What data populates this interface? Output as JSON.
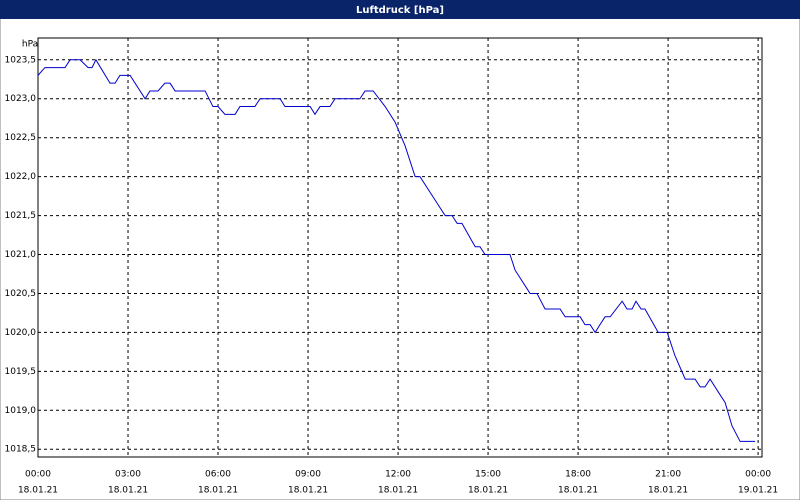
{
  "chart_data": {
    "type": "line",
    "title": "Luftdruck [hPa]",
    "y_unit": "hPa",
    "color": "#0000cc",
    "grid": true,
    "x": [
      0,
      0.23,
      0.9,
      1.07,
      1.4,
      1.67,
      1.8,
      1.93,
      2.4,
      2.57,
      2.73,
      3.07,
      3.57,
      3.73,
      4.0,
      4.23,
      4.4,
      4.57,
      5.57,
      5.83,
      6.0,
      6.23,
      6.57,
      6.73,
      7.23,
      7.4,
      8.07,
      8.23,
      9.07,
      9.23,
      9.4,
      9.73,
      9.9,
      10.73,
      10.9,
      11.17,
      11.57,
      11.9,
      12.23,
      12.57,
      12.73,
      13.4,
      13.57,
      13.8,
      13.97,
      14.13,
      14.57,
      14.73,
      14.9,
      15.73,
      15.9,
      16.4,
      16.63,
      16.9,
      17.4,
      17.57,
      18.07,
      18.23,
      18.4,
      18.57,
      18.73,
      18.9,
      19.07,
      19.47,
      19.63,
      19.8,
      19.93,
      20.1,
      20.23,
      20.67,
      20.97,
      21.23,
      21.57,
      21.9,
      22.07,
      22.23,
      22.4,
      22.73,
      22.9,
      23.13,
      23.4,
      23.9
    ],
    "values": [
      1023.3,
      1023.4,
      1023.4,
      1023.5,
      1023.5,
      1023.4,
      1023.4,
      1023.5,
      1023.2,
      1023.2,
      1023.3,
      1023.3,
      1023.0,
      1023.1,
      1023.1,
      1023.2,
      1023.2,
      1023.1,
      1023.1,
      1022.9,
      1022.9,
      1022.8,
      1022.8,
      1022.9,
      1022.9,
      1023.0,
      1023.0,
      1022.9,
      1022.9,
      1022.8,
      1022.9,
      1022.9,
      1023.0,
      1023.0,
      1023.1,
      1023.1,
      1022.9,
      1022.7,
      1022.4,
      1022.0,
      1022.0,
      1021.6,
      1021.5,
      1021.5,
      1021.4,
      1021.4,
      1021.1,
      1021.1,
      1021.0,
      1021.0,
      1020.8,
      1020.5,
      1020.5,
      1020.3,
      1020.3,
      1020.2,
      1020.2,
      1020.1,
      1020.1,
      1020.0,
      1020.1,
      1020.2,
      1020.2,
      1020.4,
      1020.3,
      1020.3,
      1020.4,
      1020.3,
      1020.3,
      1020.0,
      1020.0,
      1019.7,
      1019.4,
      1019.4,
      1019.3,
      1019.3,
      1019.4,
      1019.2,
      1019.1,
      1018.8,
      1018.6,
      1018.6
    ],
    "xlim": [
      0,
      24.13
    ],
    "xticks": [
      {
        "value": 0,
        "label": "00:00",
        "date": "18.01.21"
      },
      {
        "value": 3,
        "label": "03:00",
        "date": "18.01.21"
      },
      {
        "value": 6,
        "label": "06:00",
        "date": "18.01.21"
      },
      {
        "value": 9,
        "label": "09:00",
        "date": "18.01.21"
      },
      {
        "value": 12,
        "label": "12:00",
        "date": "18.01.21"
      },
      {
        "value": 15,
        "label": "15:00",
        "date": "18.01.21"
      },
      {
        "value": 18,
        "label": "18:00",
        "date": "18.01.21"
      },
      {
        "value": 21,
        "label": "21:00",
        "date": "18.01.21"
      },
      {
        "value": 24,
        "label": "00:00",
        "date": "19.01.21"
      }
    ],
    "ylim": [
      1018.4,
      1023.78
    ],
    "yticks": [
      {
        "value": 1018.5,
        "label": "1018,5"
      },
      {
        "value": 1019,
        "label": "1019,0"
      },
      {
        "value": 1019.5,
        "label": "1019,5"
      },
      {
        "value": 1020,
        "label": "1020,0"
      },
      {
        "value": 1020.5,
        "label": "1020,5"
      },
      {
        "value": 1021,
        "label": "1021,0"
      },
      {
        "value": 1021.5,
        "label": "1021,5"
      },
      {
        "value": 1022,
        "label": "1022,0"
      },
      {
        "value": 1022.5,
        "label": "1022,5"
      },
      {
        "value": 1023,
        "label": "1023,0"
      },
      {
        "value": 1023.5,
        "label": "1023,5"
      }
    ]
  }
}
